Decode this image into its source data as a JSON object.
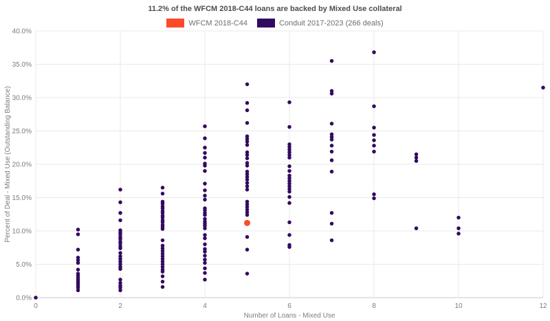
{
  "title": "11.2% of the WFCM 2018-C44 loans are backed by Mixed Use collateral",
  "chart_data": {
    "type": "scatter",
    "title": "11.2% of the WFCM 2018-C44 loans are backed by Mixed Use collateral",
    "xlabel": "Number of Loans - Mixed Use",
    "ylabel": "Percent of Deal - Mixed Use (Outstanding Balance)",
    "xlim": [
      0,
      12
    ],
    "ylim": [
      0,
      40
    ],
    "x_ticks": [
      0,
      2,
      4,
      6,
      8,
      10,
      12
    ],
    "x_tick_labels": [
      "0",
      "2",
      "4",
      "6",
      "8",
      "10",
      "12"
    ],
    "y_ticks": [
      0,
      5,
      10,
      15,
      20,
      25,
      30,
      35,
      40
    ],
    "y_tick_labels": [
      "0.0%",
      "5.0%",
      "10.0%",
      "15.0%",
      "20.0%",
      "25.0%",
      "30.0%",
      "35.0%",
      "40.0%"
    ],
    "grid": true,
    "legend_position": "top-center",
    "series": [
      {
        "name": "WFCM 2018-C44",
        "color": "#fb4b28",
        "marker_diameter": 9,
        "points": [
          [
            5,
            11.2
          ]
        ]
      },
      {
        "name": "Conduit 2017-2023 (266 deals)",
        "color": "#330a60",
        "marker_diameter": 5.5,
        "points": [
          [
            0,
            0.0
          ],
          [
            1,
            10.2
          ],
          [
            1,
            9.5
          ],
          [
            1,
            7.2
          ],
          [
            1,
            6.0
          ],
          [
            1,
            5.6
          ],
          [
            1,
            5.2
          ],
          [
            1,
            4.2
          ],
          [
            1,
            3.6
          ],
          [
            1,
            3.3
          ],
          [
            1,
            3.0
          ],
          [
            1,
            2.7
          ],
          [
            1,
            2.4
          ],
          [
            1,
            2.1
          ],
          [
            1,
            1.8
          ],
          [
            1,
            1.5
          ],
          [
            1,
            1.1
          ],
          [
            2,
            16.2
          ],
          [
            2,
            14.3
          ],
          [
            2,
            12.7
          ],
          [
            2,
            11.6
          ],
          [
            2,
            10.1
          ],
          [
            2,
            9.8
          ],
          [
            2,
            9.5
          ],
          [
            2,
            9.1
          ],
          [
            2,
            8.8
          ],
          [
            2,
            8.4
          ],
          [
            2,
            8.1
          ],
          [
            2,
            7.7
          ],
          [
            2,
            7.4
          ],
          [
            2,
            6.7
          ],
          [
            2,
            6.2
          ],
          [
            2,
            5.8
          ],
          [
            2,
            5.4
          ],
          [
            2,
            5.0
          ],
          [
            2,
            4.6
          ],
          [
            2,
            4.3
          ],
          [
            2,
            2.7
          ],
          [
            2,
            2.2
          ],
          [
            2,
            1.8
          ],
          [
            2,
            1.5
          ],
          [
            2,
            1.1
          ],
          [
            3,
            16.5
          ],
          [
            3,
            15.6
          ],
          [
            3,
            14.4
          ],
          [
            3,
            14.1
          ],
          [
            3,
            13.7
          ],
          [
            3,
            13.4
          ],
          [
            3,
            13.0
          ],
          [
            3,
            12.7
          ],
          [
            3,
            12.3
          ],
          [
            3,
            12.0
          ],
          [
            3,
            11.6
          ],
          [
            3,
            11.3
          ],
          [
            3,
            10.9
          ],
          [
            3,
            10.6
          ],
          [
            3,
            10.3
          ],
          [
            3,
            8.6
          ],
          [
            3,
            7.8
          ],
          [
            3,
            7.4
          ],
          [
            3,
            7.0
          ],
          [
            3,
            6.6
          ],
          [
            3,
            6.2
          ],
          [
            3,
            5.8
          ],
          [
            3,
            5.4
          ],
          [
            3,
            5.0
          ],
          [
            3,
            4.6
          ],
          [
            3,
            4.2
          ],
          [
            3,
            3.9
          ],
          [
            3,
            3.2
          ],
          [
            3,
            2.4
          ],
          [
            3,
            1.6
          ],
          [
            4,
            25.7
          ],
          [
            4,
            23.9
          ],
          [
            4,
            22.5
          ],
          [
            4,
            21.7
          ],
          [
            4,
            21.0
          ],
          [
            4,
            20.1
          ],
          [
            4,
            19.8
          ],
          [
            4,
            19.0
          ],
          [
            4,
            17.1
          ],
          [
            4,
            16.1
          ],
          [
            4,
            15.3
          ],
          [
            4,
            14.7
          ],
          [
            4,
            13.4
          ],
          [
            4,
            13.1
          ],
          [
            4,
            12.7
          ],
          [
            4,
            12.4
          ],
          [
            4,
            11.8
          ],
          [
            4,
            11.4
          ],
          [
            4,
            11.1
          ],
          [
            4,
            10.8
          ],
          [
            4,
            10.4
          ],
          [
            4,
            9.4
          ],
          [
            4,
            8.9
          ],
          [
            4,
            8.0
          ],
          [
            4,
            7.3
          ],
          [
            4,
            6.9
          ],
          [
            4,
            6.3
          ],
          [
            4,
            5.7
          ],
          [
            4,
            5.2
          ],
          [
            4,
            4.4
          ],
          [
            4,
            3.7
          ],
          [
            4,
            2.7
          ],
          [
            5,
            32.0
          ],
          [
            5,
            29.2
          ],
          [
            5,
            28.1
          ],
          [
            5,
            26.2
          ],
          [
            5,
            24.2
          ],
          [
            5,
            23.8
          ],
          [
            5,
            23.4
          ],
          [
            5,
            22.9
          ],
          [
            5,
            21.8
          ],
          [
            5,
            21.4
          ],
          [
            5,
            20.9
          ],
          [
            5,
            20.2
          ],
          [
            5,
            19.8
          ],
          [
            5,
            18.9
          ],
          [
            5,
            18.5
          ],
          [
            5,
            18.1
          ],
          [
            5,
            17.7
          ],
          [
            5,
            17.2
          ],
          [
            5,
            16.7
          ],
          [
            5,
            16.2
          ],
          [
            5,
            14.4
          ],
          [
            5,
            14.0
          ],
          [
            5,
            13.6
          ],
          [
            5,
            13.2
          ],
          [
            5,
            12.8
          ],
          [
            5,
            12.4
          ],
          [
            5,
            9.1
          ],
          [
            5,
            7.2
          ],
          [
            5,
            3.6
          ],
          [
            6,
            29.3
          ],
          [
            6,
            25.6
          ],
          [
            6,
            23.0
          ],
          [
            6,
            22.6
          ],
          [
            6,
            22.2
          ],
          [
            6,
            21.8
          ],
          [
            6,
            21.4
          ],
          [
            6,
            21.0
          ],
          [
            6,
            19.7
          ],
          [
            6,
            19.0
          ],
          [
            6,
            18.3
          ],
          [
            6,
            17.9
          ],
          [
            6,
            17.5
          ],
          [
            6,
            17.1
          ],
          [
            6,
            16.7
          ],
          [
            6,
            16.3
          ],
          [
            6,
            15.9
          ],
          [
            6,
            15.1
          ],
          [
            6,
            14.2
          ],
          [
            6,
            11.3
          ],
          [
            6,
            9.4
          ],
          [
            6,
            7.9
          ],
          [
            6,
            7.6
          ],
          [
            7,
            35.5
          ],
          [
            7,
            31.0
          ],
          [
            7,
            30.6
          ],
          [
            7,
            26.1
          ],
          [
            7,
            24.5
          ],
          [
            7,
            24.1
          ],
          [
            7,
            23.7
          ],
          [
            7,
            22.8
          ],
          [
            7,
            21.9
          ],
          [
            7,
            20.6
          ],
          [
            7,
            18.9
          ],
          [
            7,
            12.7
          ],
          [
            7,
            11.1
          ],
          [
            7,
            8.6
          ],
          [
            8,
            36.8
          ],
          [
            8,
            28.7
          ],
          [
            8,
            25.5
          ],
          [
            8,
            24.4
          ],
          [
            8,
            23.6
          ],
          [
            8,
            22.8
          ],
          [
            8,
            21.9
          ],
          [
            8,
            15.5
          ],
          [
            8,
            14.9
          ],
          [
            9,
            21.5
          ],
          [
            9,
            21.0
          ],
          [
            9,
            20.5
          ],
          [
            9,
            10.4
          ],
          [
            10,
            12.0
          ],
          [
            10,
            10.4
          ],
          [
            10,
            9.6
          ],
          [
            12,
            31.5
          ]
        ]
      }
    ]
  }
}
